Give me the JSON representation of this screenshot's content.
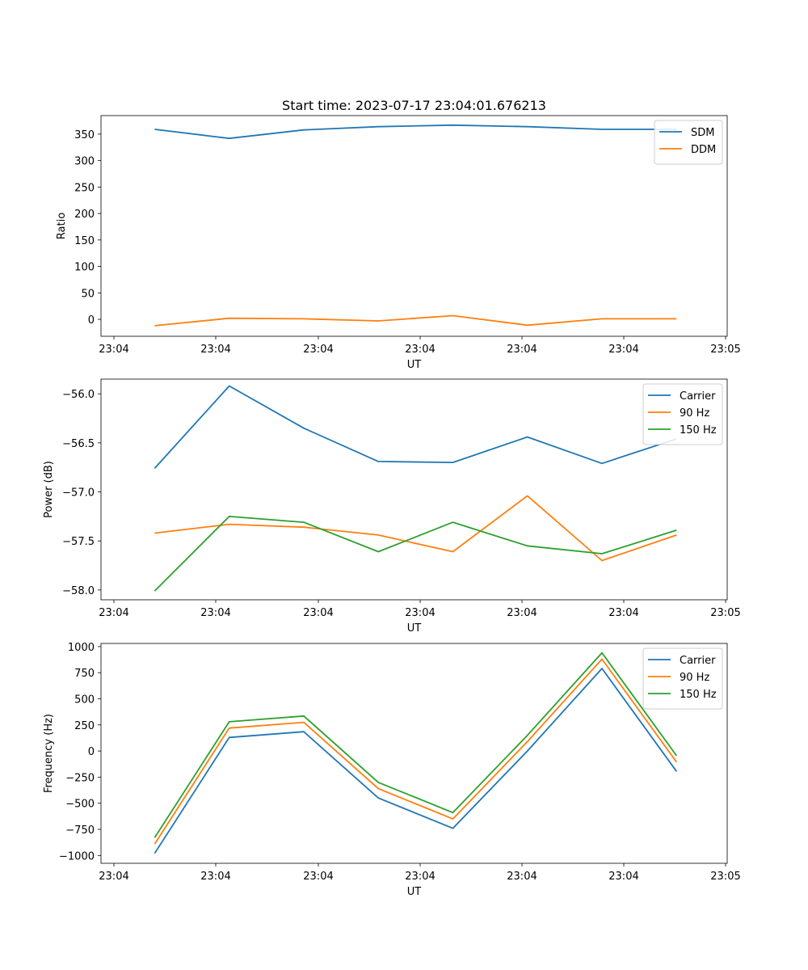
{
  "title": "Start time: 2023-07-17 23:04:01.676213",
  "chart_data": [
    {
      "type": "line",
      "title": "Start time: 2023-07-17 23:04:01.676213",
      "xlabel": "UT",
      "ylabel": "Ratio",
      "x_tick_labels": [
        "23:04",
        "23:04",
        "23:04",
        "23:04",
        "23:04",
        "23:04",
        "23:05"
      ],
      "y_ticks": [
        0,
        50,
        100,
        150,
        200,
        250,
        300,
        350
      ],
      "ylim": [
        -32,
        385
      ],
      "legend_position": "top-right",
      "x": [
        1,
        2,
        3,
        4,
        5,
        6,
        7,
        8
      ],
      "series": [
        {
          "name": "SDM",
          "color": "#1f77b4",
          "values": [
            359,
            342,
            358,
            364,
            367,
            364,
            359,
            359
          ]
        },
        {
          "name": "DDM",
          "color": "#ff7f0e",
          "values": [
            -12,
            2,
            1,
            -3,
            7,
            -11,
            1,
            1
          ]
        }
      ]
    },
    {
      "type": "line",
      "title": "",
      "xlabel": "UT",
      "ylabel": "Power (dB)",
      "x_tick_labels": [
        "23:04",
        "23:04",
        "23:04",
        "23:04",
        "23:04",
        "23:04",
        "23:05"
      ],
      "y_ticks": [
        -58.0,
        -57.5,
        -57.0,
        -56.5,
        -56.0
      ],
      "y_tick_labels": [
        "−58.0",
        "−57.5",
        "−57.0",
        "−56.5",
        "−56.0"
      ],
      "ylim": [
        -58.1,
        -55.85
      ],
      "legend_position": "top-right",
      "x": [
        1,
        2,
        3,
        4,
        5,
        6,
        7,
        8
      ],
      "series": [
        {
          "name": "Carrier",
          "color": "#1f77b4",
          "values": [
            -56.76,
            -55.92,
            -56.35,
            -56.69,
            -56.7,
            -56.44,
            -56.71,
            -56.46
          ]
        },
        {
          "name": "90 Hz",
          "color": "#ff7f0e",
          "values": [
            -57.42,
            -57.33,
            -57.36,
            -57.44,
            -57.61,
            -57.04,
            -57.7,
            -57.44
          ]
        },
        {
          "name": "150 Hz",
          "color": "#2ca02c",
          "values": [
            -58.01,
            -57.25,
            -57.31,
            -57.61,
            -57.31,
            -57.55,
            -57.63,
            -57.39
          ]
        }
      ]
    },
    {
      "type": "line",
      "title": "",
      "xlabel": "UT",
      "ylabel": "Frequency (Hz)",
      "x_tick_labels": [
        "23:04",
        "23:04",
        "23:04",
        "23:04",
        "23:04",
        "23:04",
        "23:05"
      ],
      "y_ticks": [
        -1000,
        -750,
        -500,
        -250,
        0,
        250,
        500,
        750,
        1000
      ],
      "y_tick_labels": [
        "−1000",
        "−750",
        "−500",
        "−250",
        "0",
        "250",
        "500",
        "750",
        "1000"
      ],
      "ylim": [
        -1075,
        1030
      ],
      "legend_position": "top-right",
      "x": [
        1,
        2,
        3,
        4,
        5,
        6,
        7,
        8
      ],
      "series": [
        {
          "name": "Carrier",
          "color": "#1f77b4",
          "values": [
            -980,
            130,
            185,
            -450,
            -740,
            0,
            790,
            -195
          ]
        },
        {
          "name": "90 Hz",
          "color": "#ff7f0e",
          "values": [
            -890,
            220,
            275,
            -360,
            -650,
            90,
            880,
            -105
          ]
        },
        {
          "name": "150 Hz",
          "color": "#2ca02c",
          "values": [
            -830,
            280,
            335,
            -300,
            -590,
            150,
            940,
            -45
          ]
        }
      ]
    }
  ]
}
